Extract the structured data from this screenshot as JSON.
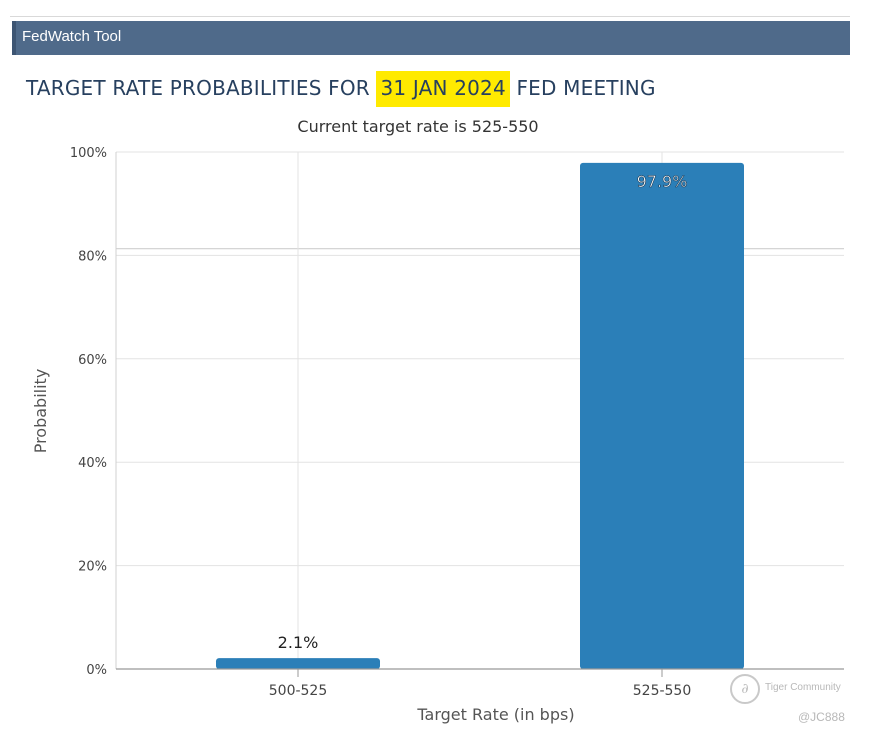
{
  "toolbar": {
    "title": "FedWatch Tool",
    "bg_color": "#4f6a8a"
  },
  "header": {
    "title_prefix": "TARGET RATE PROBABILITIES FOR",
    "title_date": "31 JAN 2024",
    "title_suffix": "FED MEETING",
    "highlight_color": "#ffea00"
  },
  "chart_data": {
    "type": "bar",
    "subtitle": "Current target rate is 525-550",
    "categories": [
      "500-525",
      "525-550"
    ],
    "values": [
      2.1,
      97.9
    ],
    "data_labels": [
      "2.1%",
      "97.9%"
    ],
    "xlabel": "Target Rate (in bps)",
    "ylabel": "Probability",
    "ylim": [
      0,
      100
    ],
    "yticks": [
      "0%",
      "20%",
      "40%",
      "60%",
      "80%",
      "100%"
    ],
    "grid": true,
    "bar_color": "#2b7fb8"
  },
  "watermark": {
    "logo_glyph": "∂",
    "name": "Tiger Community",
    "handle": "@JC888"
  }
}
